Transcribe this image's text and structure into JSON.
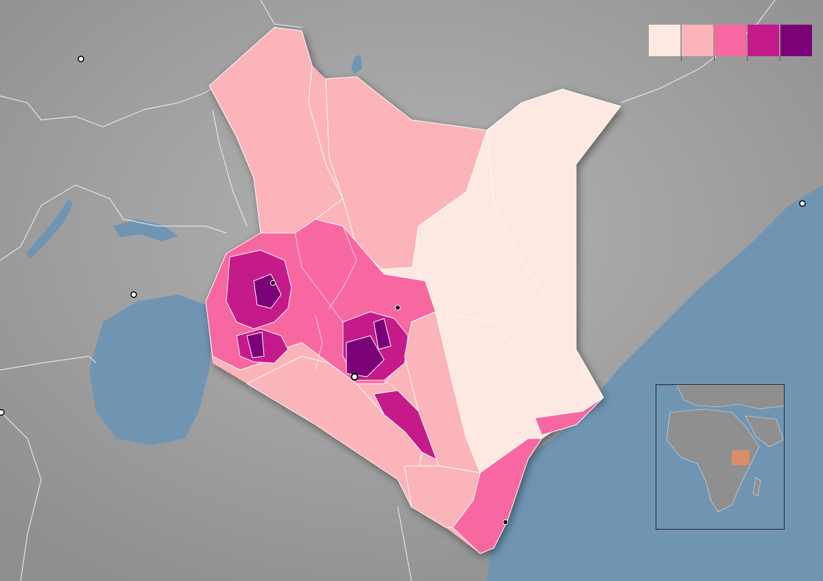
{
  "map": {
    "colors": {
      "land_background": "#9d9d9d",
      "water": "#6f95b3",
      "border": "#ffffff",
      "class_1": "#fde9e1",
      "class_2": "#fbb4b9",
      "class_3": "#f768a1",
      "class_4": "#c51b8a",
      "class_5": "#7a0177"
    },
    "legend": {
      "classes": [
        "#fde9e1",
        "#fbb4b9",
        "#f768a1",
        "#c51b8a",
        "#7a0177"
      ]
    },
    "inset": {
      "highlight": "#f28e5b"
    }
  }
}
